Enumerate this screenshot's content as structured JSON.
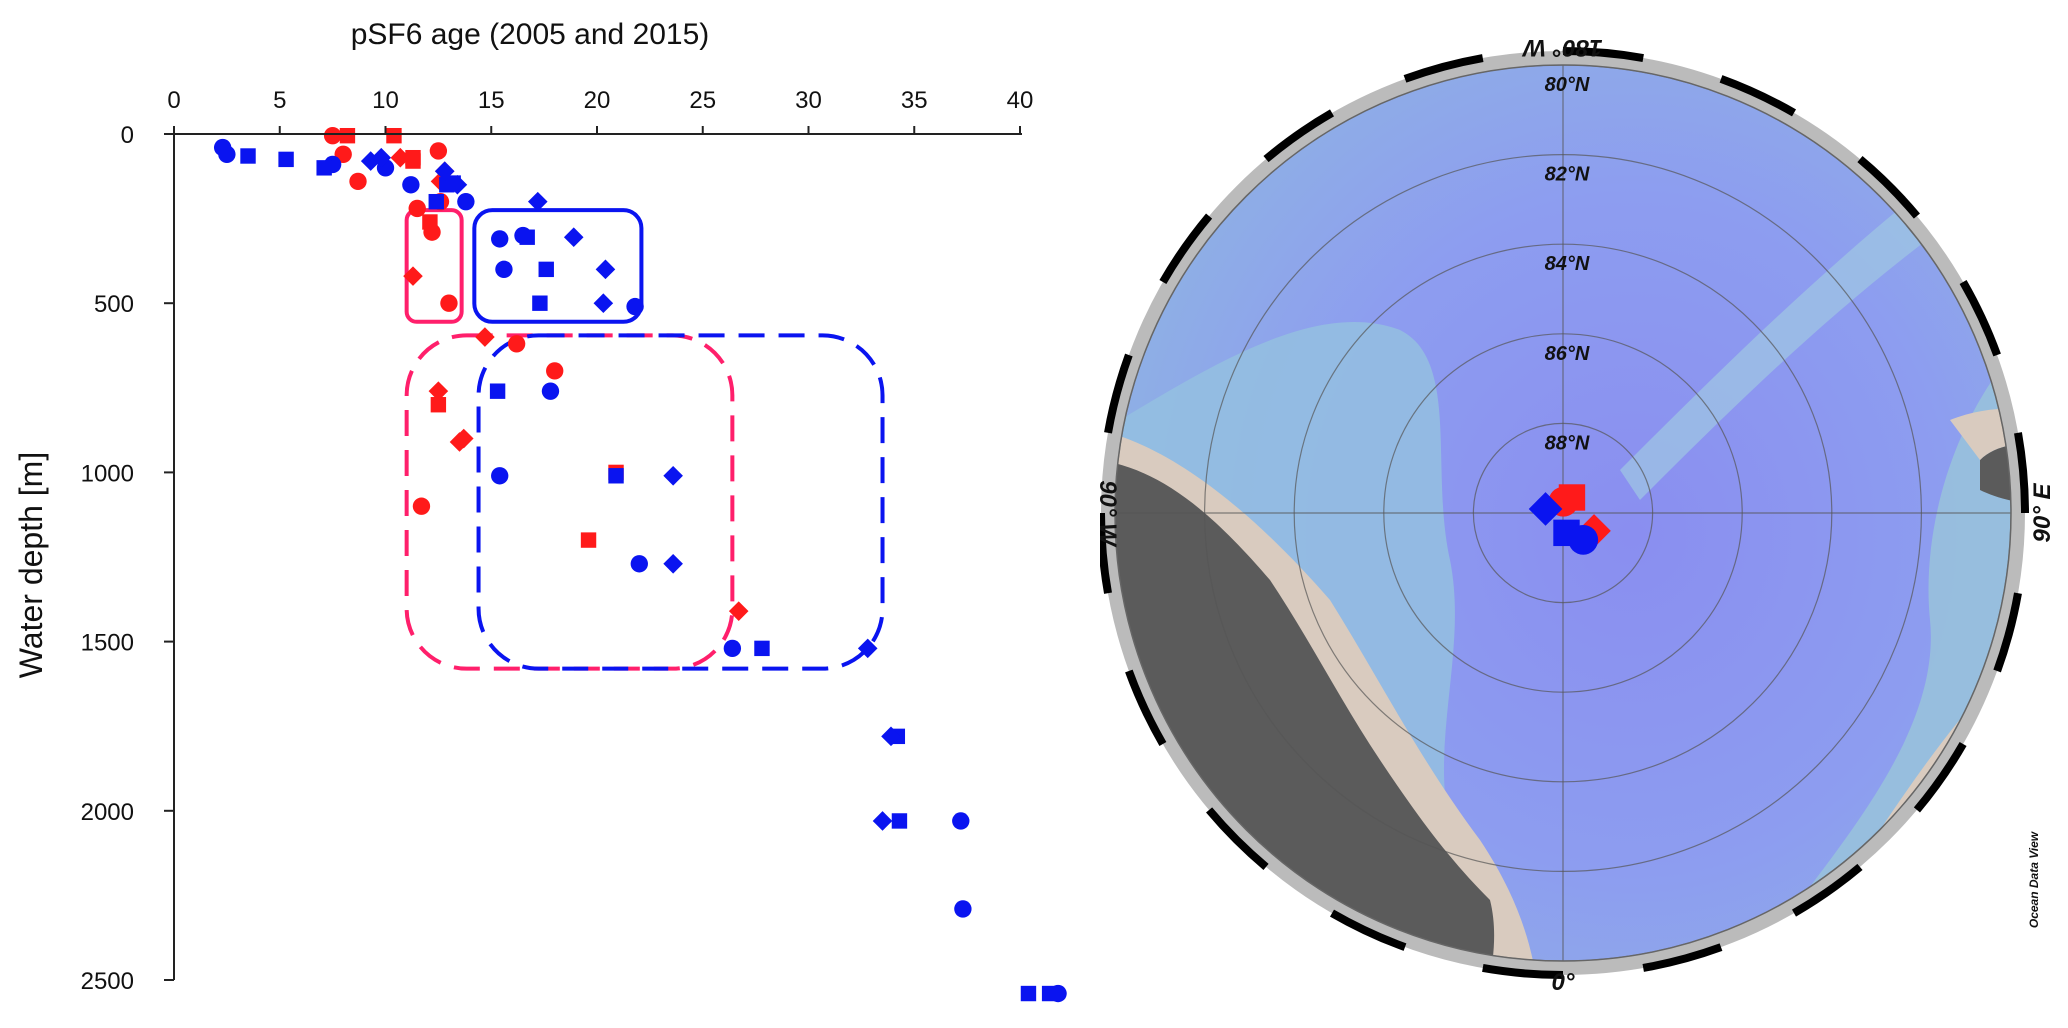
{
  "chart_data": [
    {
      "type": "scatter",
      "title": "pSF6 age (2005 and 2015)",
      "xlabel": "pSF6 age (2005 and 2015)",
      "ylabel": "Water depth [m]",
      "xlim": [
        0,
        40
      ],
      "ylim": [
        0,
        2500
      ],
      "x_ticks": [
        "0",
        "5",
        "10",
        "15",
        "20",
        "25",
        "30",
        "35",
        "40"
      ],
      "y_ticks": [
        "0",
        "500",
        "1000",
        "1500",
        "2000",
        "2500"
      ],
      "x_tick_values": [
        0,
        5,
        10,
        15,
        20,
        25,
        30,
        35,
        40
      ],
      "y_tick_values": [
        0,
        500,
        1000,
        1500,
        2000,
        2500
      ],
      "y_inverted": true,
      "x_axis_position": "top",
      "colors": {
        "red": "#ff1a1a",
        "blue": "#0a14f0",
        "pink": "#ff1f6b"
      },
      "series": [
        {
          "color": "red",
          "marker": "circle",
          "x": [
            7.5,
            8,
            8.7,
            11.5,
            12.2,
            12.5,
            12.6,
            13,
            16.2,
            18,
            11.7
          ],
          "y": [
            5,
            60,
            140,
            220,
            290,
            50,
            200,
            500,
            620,
            700,
            1100
          ]
        },
        {
          "color": "red",
          "marker": "square",
          "x": [
            8.2,
            10.4,
            11.3,
            11.3,
            12.1,
            12.5,
            20.9,
            19.6
          ],
          "y": [
            5,
            5,
            70,
            80,
            260,
            800,
            1000,
            1200
          ]
        },
        {
          "color": "red",
          "marker": "diamond",
          "x": [
            10.7,
            12.6,
            12.8,
            11.3,
            14.7,
            12.5,
            13.7,
            13.5,
            26.7
          ],
          "y": [
            70,
            140,
            110,
            420,
            600,
            760,
            900,
            910,
            1410
          ]
        },
        {
          "color": "blue",
          "marker": "circle",
          "x": [
            2.3,
            2.5,
            7.5,
            10,
            11.2,
            13.8,
            15.4,
            15.6,
            16.5,
            17.8,
            15.4,
            22,
            21.8,
            26.4,
            37.2,
            37.3,
            41.8
          ],
          "y": [
            40,
            60,
            90,
            100,
            150,
            200,
            310,
            400,
            300,
            760,
            1010,
            1270,
            510,
            1520,
            2030,
            2290,
            2540
          ],
          "hidden_by_box": [
            false,
            false,
            false,
            false,
            false,
            false,
            false,
            false,
            true,
            false,
            false,
            false,
            false,
            false,
            false,
            false,
            false
          ]
        },
        {
          "color": "blue",
          "marker": "square",
          "x": [
            3.5,
            5.3,
            7.1,
            12.4,
            12.9,
            13.2,
            16.7,
            17.6,
            17.3,
            15.3,
            20.9,
            27.8,
            34.2,
            34.3,
            40.4,
            41.4
          ],
          "y": [
            65,
            75,
            100,
            200,
            150,
            145,
            305,
            400,
            500,
            760,
            1010,
            1520,
            1780,
            2030,
            2540,
            2540
          ]
        },
        {
          "color": "blue",
          "marker": "diamond",
          "x": [
            9.3,
            9.8,
            12.8,
            13.4,
            17.2,
            18.9,
            20.4,
            20.3,
            23.6,
            23.6,
            32.8,
            33.9,
            33.5
          ],
          "y": [
            80,
            70,
            110,
            150,
            200,
            305,
            400,
            500,
            1010,
            1270,
            1520,
            1780,
            2030
          ]
        }
      ]
    },
    {
      "type": "map",
      "projection": "north-polar-stereographic",
      "latitude_labels": [
        "80°N",
        "82°N",
        "84°N",
        "86°N",
        "88°N"
      ],
      "latitude_values": [
        80,
        82,
        84,
        86,
        88
      ],
      "longitude_labels": {
        "top": "180° W",
        "left": "90° W",
        "right": "90° E",
        "bottom": "0°"
      },
      "credit": "Ocean Data View",
      "colors": {
        "ocean_deep": "#8a8ef0",
        "ocean_mid": "#8fb3e6",
        "shelf": "#9cc7d8",
        "land": "#5b5b5b",
        "coast": "#d9cbbf",
        "red_marker": "#ff1a1a",
        "blue_marker": "#0a14f0"
      },
      "stations": [
        {
          "color": "red",
          "marker": "circle",
          "lat": 89.75,
          "lon": 178
        },
        {
          "color": "red",
          "marker": "square",
          "lat": 89.6,
          "lon": 150
        },
        {
          "color": "red",
          "marker": "diamond",
          "lat": 89.2,
          "lon": 60
        },
        {
          "color": "blue",
          "marker": "diamond",
          "lat": 89.6,
          "lon": -103
        },
        {
          "color": "blue",
          "marker": "square",
          "lat": 89.55,
          "lon": 10
        },
        {
          "color": "blue",
          "marker": "circle",
          "lat": 89.25,
          "lon": 37
        }
      ]
    }
  ]
}
